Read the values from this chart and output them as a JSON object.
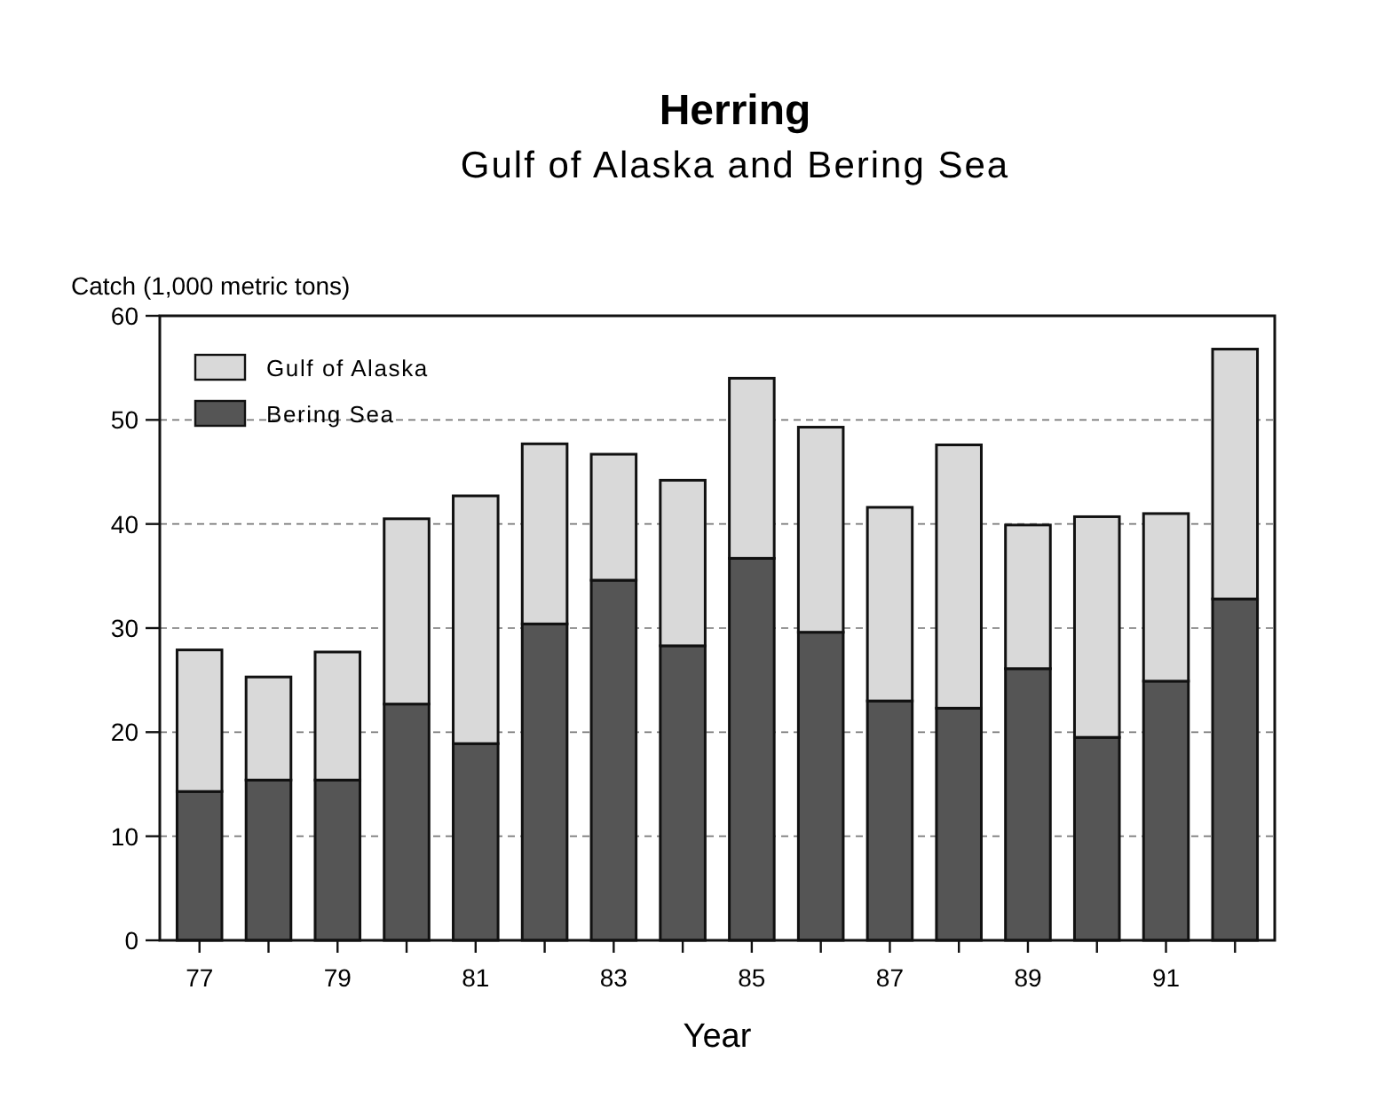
{
  "chart_data": {
    "type": "bar",
    "title": "Herring",
    "subtitle": "Gulf of Alaska and Bering Sea",
    "ylabel": "Catch (1,000 metric tons)",
    "xlabel": "Year",
    "categories": [
      "77",
      null,
      "79",
      null,
      "81",
      null,
      "83",
      null,
      "85",
      null,
      "87",
      null,
      "89",
      null,
      "91",
      null
    ],
    "stacked": true,
    "series": [
      {
        "name": "Bering Sea",
        "color": "#555555",
        "values": [
          14.3,
          15.4,
          15.4,
          22.7,
          18.9,
          30.4,
          34.6,
          28.3,
          36.7,
          29.6,
          23.0,
          22.3,
          26.1,
          19.5,
          24.9,
          32.8
        ]
      },
      {
        "name": "Gulf of Alaska",
        "color": "#d9d9d9",
        "values": [
          13.6,
          9.9,
          12.3,
          17.8,
          23.8,
          17.3,
          12.1,
          15.9,
          17.3,
          19.7,
          18.6,
          25.3,
          13.8,
          21.2,
          16.1,
          24.0
        ]
      }
    ],
    "ylim": [
      0,
      60
    ],
    "yticks": [
      0,
      10,
      20,
      30,
      40,
      50,
      60
    ],
    "grid": "y",
    "legend": "top left"
  }
}
